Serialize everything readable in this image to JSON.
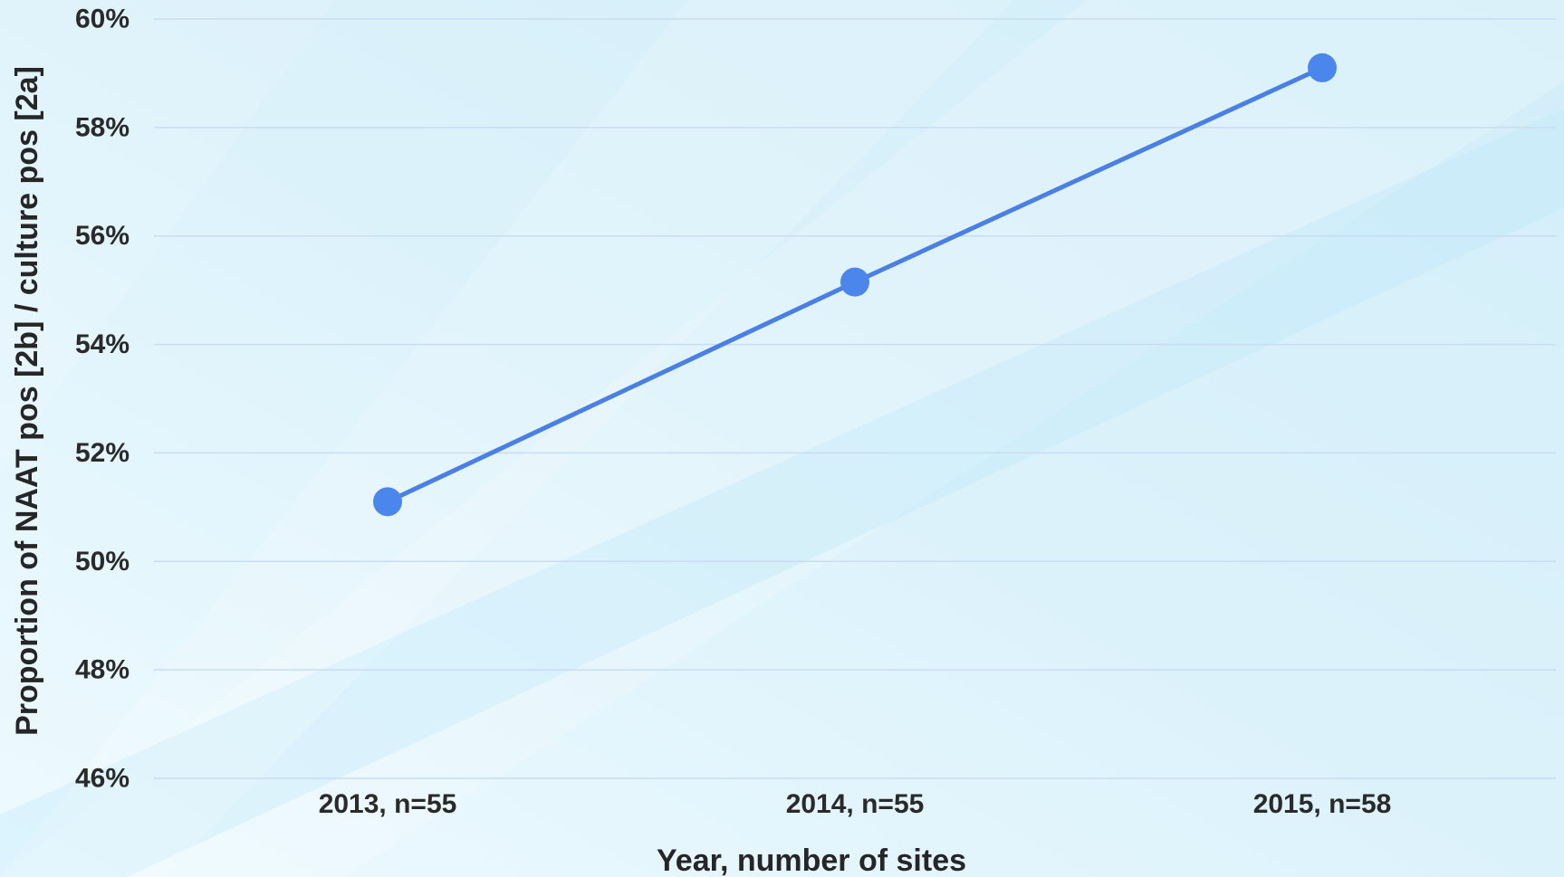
{
  "chart_data": {
    "type": "line",
    "title": "",
    "xlabel": "Year, number of sites",
    "ylabel": "Proportion of NAAT pos [2b] / culture pos [2a]",
    "categories": [
      "2013, n=55",
      "2014, n=55",
      "2015, n=58"
    ],
    "series": [
      {
        "values": [
          51.1,
          55.15,
          59.1
        ]
      }
    ],
    "ylim": [
      46,
      60
    ],
    "yticks": [
      "46%",
      "48%",
      "50%",
      "52%",
      "54%",
      "56%",
      "58%",
      "60%"
    ],
    "grid": true,
    "legend": "none"
  },
  "colors": {
    "line": "#4a7fe6",
    "marker": "#4a86ec",
    "grid": "#c9dcf2",
    "background": "#e3f4fc"
  }
}
